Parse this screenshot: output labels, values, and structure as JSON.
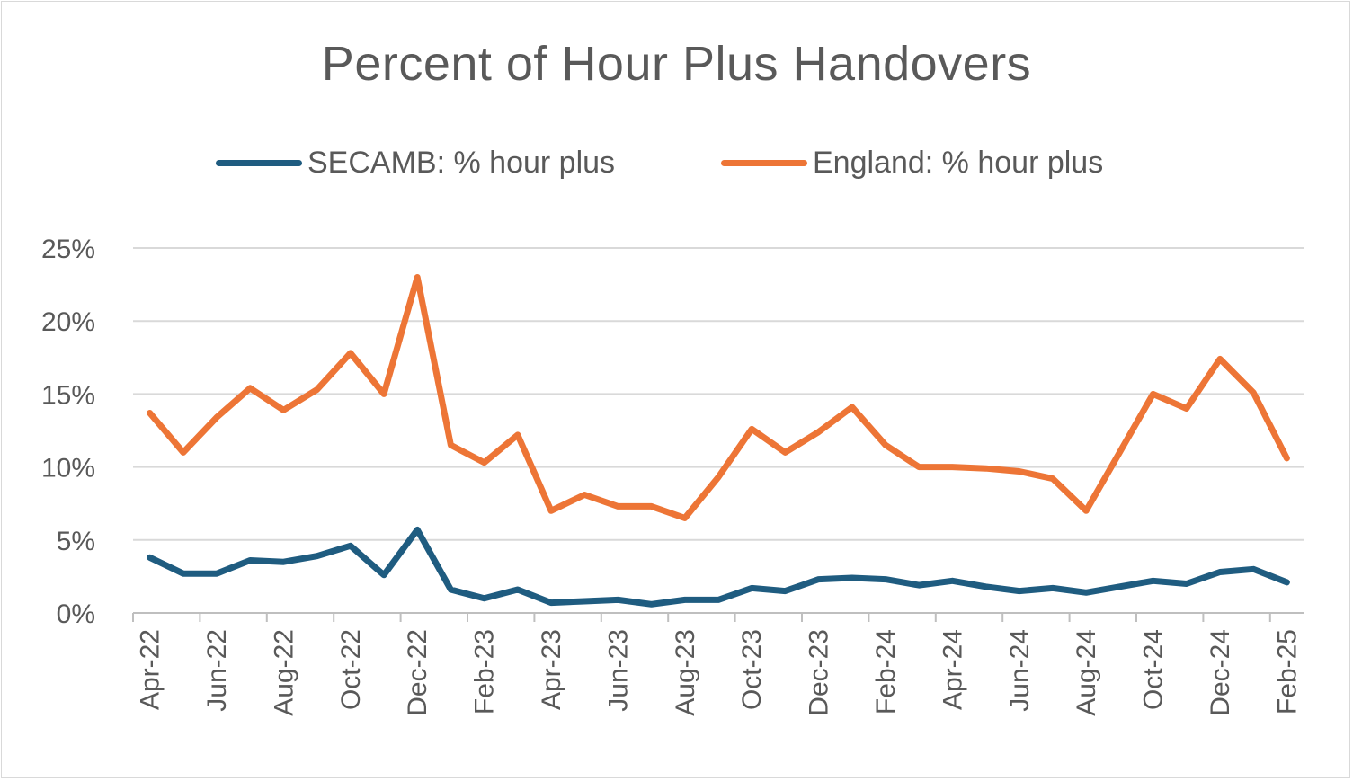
{
  "chart_data": {
    "type": "line",
    "title": "Percent of Hour Plus Handovers",
    "xlabel": "",
    "ylabel": "",
    "ylim": [
      0,
      25
    ],
    "y_ticks": [
      0,
      5,
      10,
      15,
      20,
      25
    ],
    "y_tick_labels": [
      "0%",
      "5%",
      "10%",
      "15%",
      "20%",
      "25%"
    ],
    "grid": "horizontal",
    "legend_position": "top",
    "x": [
      "Apr-22",
      "May-22",
      "Jun-22",
      "Jul-22",
      "Aug-22",
      "Sep-22",
      "Oct-22",
      "Nov-22",
      "Dec-22",
      "Jan-23",
      "Feb-23",
      "Mar-23",
      "Apr-23",
      "May-23",
      "Jun-23",
      "Jul-23",
      "Aug-23",
      "Sep-23",
      "Oct-23",
      "Nov-23",
      "Dec-23",
      "Jan-24",
      "Feb-24",
      "Mar-24",
      "Apr-24",
      "May-24",
      "Jun-24",
      "Jul-24",
      "Aug-24",
      "Sep-24",
      "Oct-24",
      "Nov-24",
      "Dec-24",
      "Jan-25",
      "Feb-25"
    ],
    "x_tick_labels": [
      "Apr-22",
      "Jun-22",
      "Aug-22",
      "Oct-22",
      "Dec-22",
      "Feb-23",
      "Apr-23",
      "Jun-23",
      "Aug-23",
      "Oct-23",
      "Dec-23",
      "Feb-24",
      "Apr-24",
      "Jun-24",
      "Aug-24",
      "Oct-24",
      "Dec-24",
      "Feb-25"
    ],
    "series": [
      {
        "name": "SECAMB: % hour plus",
        "color": "#1f5c80",
        "values": [
          3.8,
          2.7,
          2.7,
          3.6,
          3.5,
          3.9,
          4.6,
          2.6,
          5.7,
          1.6,
          1.0,
          1.6,
          0.7,
          0.8,
          0.9,
          0.6,
          0.9,
          0.9,
          1.7,
          1.5,
          2.3,
          2.4,
          2.3,
          1.9,
          2.2,
          1.8,
          1.5,
          1.7,
          1.4,
          1.8,
          2.2,
          2.0,
          2.8,
          3.0,
          2.1
        ]
      },
      {
        "name": "England: % hour plus",
        "color": "#ed7536",
        "values": [
          13.7,
          11.0,
          13.4,
          15.4,
          13.9,
          15.3,
          17.8,
          15.0,
          23.0,
          11.5,
          10.3,
          12.2,
          7.0,
          8.1,
          7.3,
          7.3,
          6.5,
          9.3,
          12.6,
          11.0,
          12.4,
          14.1,
          11.5,
          10.0,
          10.0,
          9.9,
          9.7,
          9.2,
          7.0,
          11.0,
          15.0,
          14.0,
          17.4,
          15.1,
          10.6
        ]
      }
    ]
  }
}
